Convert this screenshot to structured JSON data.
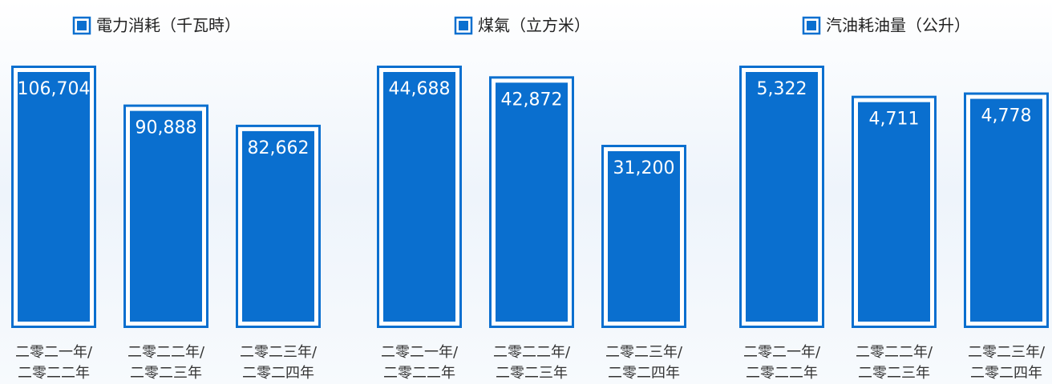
{
  "chart_data": [
    {
      "type": "bar",
      "series": [
        {
          "name": "電力消耗（千瓦時）",
          "color": "#0a6fcf",
          "values": [
            106704,
            90888,
            82662
          ],
          "value_labels": [
            "106,704",
            "90,888",
            "82,662"
          ]
        }
      ],
      "categories": [
        [
          "二零二一年/",
          "二零二二年"
        ],
        [
          "二零二二年/",
          "二零二三年"
        ],
        [
          "二零二三年/",
          "二零二四年"
        ]
      ]
    },
    {
      "type": "bar",
      "series": [
        {
          "name": "煤氣（立方米）",
          "color": "#0a6fcf",
          "values": [
            44688,
            42872,
            31200
          ],
          "value_labels": [
            "44,688",
            "42,872",
            "31,200"
          ]
        }
      ],
      "categories": [
        [
          "二零二一年/",
          "二零二二年"
        ],
        [
          "二零二二年/",
          "二零二三年"
        ],
        [
          "二零二三年/",
          "二零二四年"
        ]
      ]
    },
    {
      "type": "bar",
      "series": [
        {
          "name": "汽油耗油量（公升）",
          "color": "#0a6fcf",
          "values": [
            5322,
            4711,
            4778
          ],
          "value_labels": [
            "5,322",
            "4,711",
            "4,778"
          ]
        }
      ],
      "categories": [
        [
          "二零二一年/",
          "二零二二年"
        ],
        [
          "二零二二年/",
          "二零二三年"
        ],
        [
          "二零二三年/",
          "二零二四年"
        ]
      ]
    }
  ]
}
